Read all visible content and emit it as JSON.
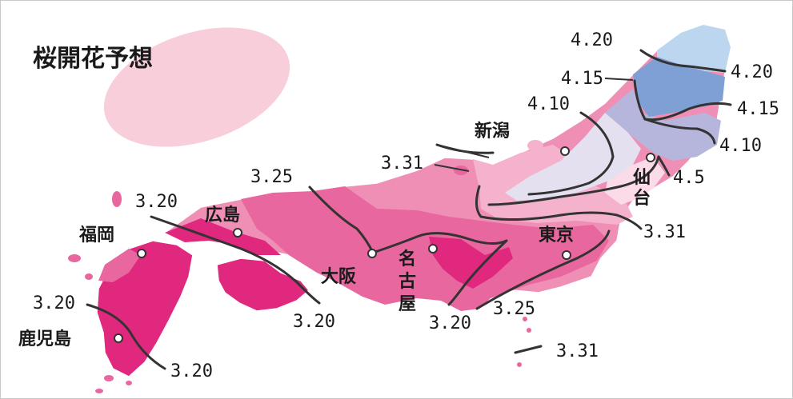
{
  "title": "桜開花予想",
  "colors": {
    "deep_pink": "#e0287f",
    "pink": "#e8679e",
    "mid_pink": "#f08fb5",
    "light_pink": "#f4b2cd",
    "pale_pink": "#fadbe7",
    "pale_lavender": "#e4e0f0",
    "lavender": "#b6b6dc",
    "blue": "#7ea0d4",
    "light_blue": "#bcd6ef",
    "title_blob": "#f6c5d4",
    "isoline": "#333333",
    "city_dot": "#ffffff"
  },
  "cities": [
    {
      "name": "新潟",
      "icon": "city-dot"
    },
    {
      "name": "仙台",
      "icon": "city-dot"
    },
    {
      "name": "広島",
      "icon": "city-dot"
    },
    {
      "name": "福岡",
      "icon": "city-dot"
    },
    {
      "name": "大阪",
      "icon": "city-dot"
    },
    {
      "name": "名古屋",
      "icon": "city-dot"
    },
    {
      "name": "東京",
      "icon": "city-dot"
    },
    {
      "name": "鹿児島",
      "icon": "city-dot"
    }
  ],
  "date_labels": [
    "4.20",
    "4.20",
    "4.15",
    "4.15",
    "4.10",
    "4.10",
    "4.5",
    "3.31",
    "3.31",
    "3.31",
    "3.25",
    "3.25",
    "3.20",
    "3.20",
    "3.20",
    "3.20",
    "3.20"
  ]
}
